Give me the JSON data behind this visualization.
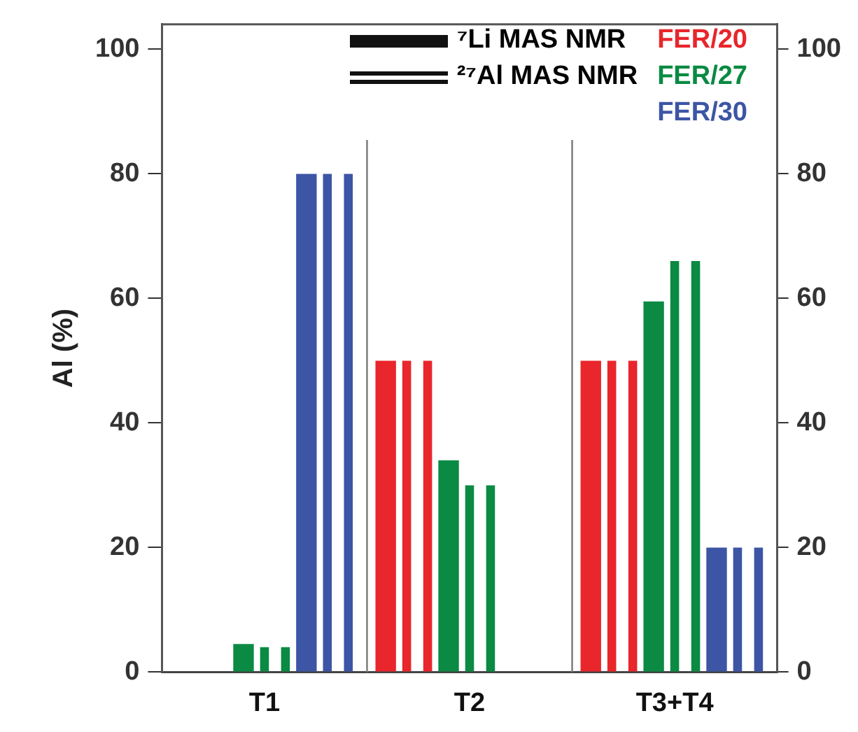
{
  "chart_data": {
    "type": "bar",
    "ylabel": "Al (%)",
    "categories": [
      "T1",
      "T2",
      "T3+T4"
    ],
    "series": [
      {
        "name": "FER/20",
        "color": "#e8262b",
        "values": [
          null,
          50,
          50
        ]
      },
      {
        "color": "#e8262b",
        "values": [
          null,
          50,
          50
        ]
      },
      {
        "color": "#e8262b",
        "values": [
          null,
          50,
          50
        ]
      },
      {
        "name": "FER/27",
        "color": "#0a8a43",
        "values": [
          4.5,
          34,
          59.5
        ]
      },
      {
        "color": "#0a8a43",
        "values": [
          4,
          30,
          66
        ]
      },
      {
        "color": "#0a8a43",
        "values": [
          4,
          30,
          66
        ]
      },
      {
        "name": "FER/30",
        "color": "#3c55a5",
        "values": [
          80,
          null,
          20
        ]
      },
      {
        "color": "#3c55a5",
        "values": [
          80,
          null,
          20
        ]
      },
      {
        "color": "#3c55a5",
        "values": [
          80,
          null,
          20
        ]
      }
    ],
    "annotations": [
      "⁷Li MAS NMR",
      "²⁷Al MAS NMR"
    ],
    "ylim": [
      0,
      104
    ],
    "yticks": [
      0,
      20,
      40,
      60,
      80,
      100
    ],
    "y2lim": [
      0,
      104
    ],
    "y2ticks": [
      0,
      20,
      40,
      60,
      80,
      100
    ],
    "grid": "x",
    "legend": "top right"
  }
}
